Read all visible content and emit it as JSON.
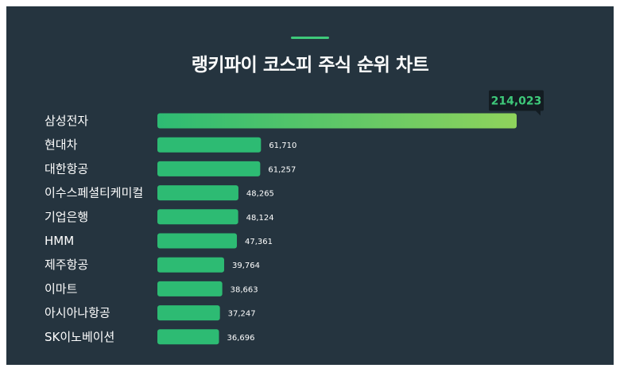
{
  "title": "랭키파이 코스피 주식 순위 차트",
  "colors": {
    "background": "#25343f",
    "bar": "#2dbb73",
    "top_bar_gradient_start": "#2dbb73",
    "top_bar_gradient_end": "#8fd35c",
    "accent": "#3ec97a",
    "callout_bg": "#131c22"
  },
  "chart_data": {
    "type": "bar",
    "orientation": "horizontal",
    "title": "랭키파이 코스피 주식 순위 차트",
    "categories": [
      "삼성전자",
      "현대차",
      "대한항공",
      "이수스페셜티케미컬",
      "기업은행",
      "HMM",
      "제주항공",
      "이마트",
      "아시아나항공",
      "SK이노베이션"
    ],
    "values": [
      214023,
      61710,
      61257,
      48265,
      48124,
      47361,
      39764,
      38663,
      37247,
      36696
    ],
    "value_labels": [
      "214,023",
      "61,710",
      "61,257",
      "48,265",
      "48,124",
      "47,361",
      "39,764",
      "38,663",
      "37,247",
      "36,696"
    ],
    "xlim": [
      0,
      214023
    ],
    "grid": false,
    "legend": "none",
    "highlight": "top value shown in callout box"
  }
}
